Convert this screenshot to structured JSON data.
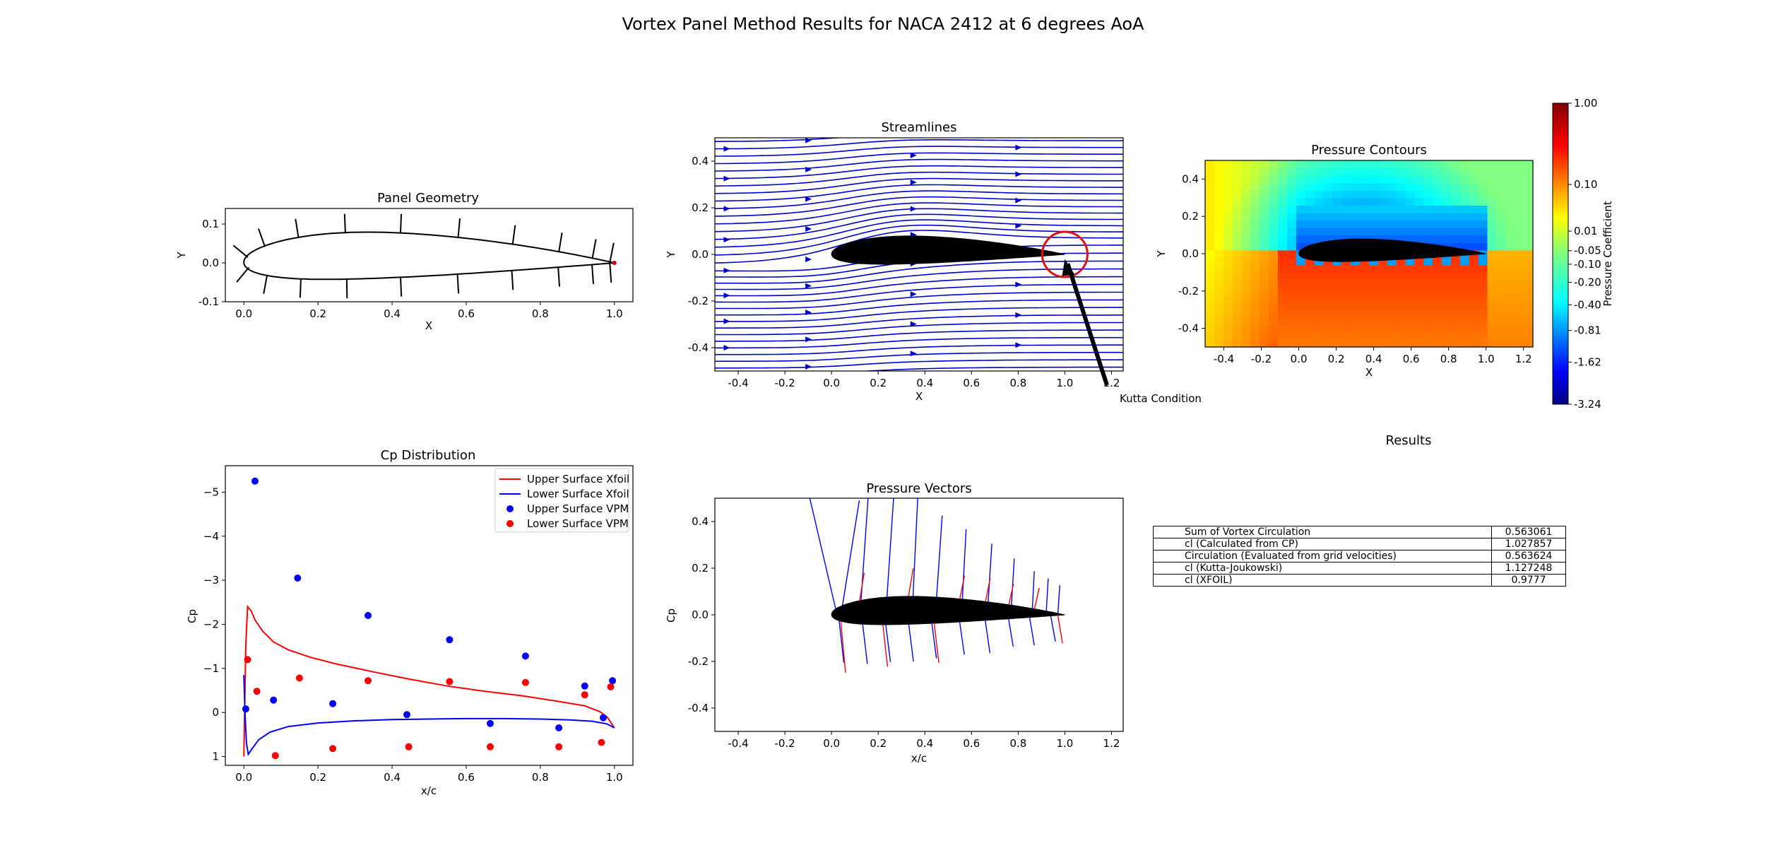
{
  "suptitle": "Vortex Panel Method Results for NACA 2412 at 6 degrees AoA",
  "colors": {
    "upper": "#ff0000",
    "lower": "#0000ff",
    "stream": "#0000cc",
    "body": "#000000"
  },
  "chart_data": [
    {
      "id": "panel",
      "type": "line",
      "title": "Panel Geometry",
      "xlabel": "X",
      "ylabel": "Y",
      "xlim": [
        -0.05,
        1.05
      ],
      "ylim": [
        -0.1,
        0.14
      ],
      "xticks": [
        "0.0",
        "0.2",
        "0.4",
        "0.6",
        "0.8",
        "1.0"
      ],
      "yticks": [
        "-0.1",
        "0.0",
        "0.1"
      ],
      "airfoil": "NACA 2412",
      "panels": 20
    },
    {
      "id": "stream",
      "type": "streamplot",
      "title": "Streamlines",
      "xlabel": "X",
      "ylabel": "Y",
      "xlim": [
        -0.5,
        1.25
      ],
      "ylim": [
        -0.5,
        0.5
      ],
      "xticks": [
        "-0.4",
        "-0.2",
        "0.0",
        "0.2",
        "0.4",
        "0.6",
        "0.8",
        "1.0",
        "1.2"
      ],
      "yticks": [
        "-0.4",
        "-0.2",
        "0.0",
        "0.2",
        "0.4"
      ],
      "annotation": {
        "text": "Kutta Condition",
        "xy": [
          1.0,
          0.0
        ]
      }
    },
    {
      "id": "contour",
      "type": "heatmap",
      "title": "Pressure Contours",
      "xlabel": "X",
      "ylabel": "Y",
      "xlim": [
        -0.5,
        1.25
      ],
      "ylim": [
        -0.5,
        0.5
      ],
      "xticks": [
        "-0.4",
        "-0.2",
        "0.0",
        "0.2",
        "0.4",
        "0.6",
        "0.8",
        "1.0",
        "1.2"
      ],
      "yticks": [
        "-0.4",
        "-0.2",
        "0.0",
        "0.2",
        "0.4"
      ],
      "colorbar": {
        "label": "Pressure Coefficient",
        "ticks": [
          "1.00",
          "0.10",
          "0.01",
          "-0.05",
          "-0.10",
          "-0.20",
          "-0.40",
          "-0.81",
          "-1.62",
          "-3.24"
        ],
        "min": -3.24,
        "max": 1.0
      }
    },
    {
      "id": "cp",
      "type": "line",
      "title": "Cp Distribution",
      "xlabel": "x/c",
      "ylabel": "Cp",
      "xlim": [
        -0.05,
        1.05
      ],
      "ylim": [
        1.2,
        -5.6
      ],
      "xticks": [
        "0.0",
        "0.2",
        "0.4",
        "0.6",
        "0.8",
        "1.0"
      ],
      "yticks": [
        "−5",
        "−4",
        "−3",
        "−2",
        "−1",
        "0",
        "1"
      ],
      "legend_position": "upper right",
      "series": [
        {
          "name": "Upper Surface Xfoil",
          "kind": "line",
          "color": "#ff0000",
          "x": [
            0.0,
            0.002,
            0.005,
            0.01,
            0.02,
            0.03,
            0.05,
            0.08,
            0.12,
            0.18,
            0.25,
            0.35,
            0.45,
            0.55,
            0.65,
            0.75,
            0.85,
            0.92,
            0.96,
            0.98,
            1.0
          ],
          "y": [
            1.0,
            0.0,
            -1.5,
            -2.4,
            -2.3,
            -2.1,
            -1.85,
            -1.6,
            -1.42,
            -1.25,
            -1.1,
            -0.92,
            -0.75,
            -0.6,
            -0.48,
            -0.38,
            -0.25,
            -0.15,
            -0.02,
            0.1,
            0.35
          ]
        },
        {
          "name": "Lower Surface Xfoil",
          "kind": "line",
          "color": "#0000ff",
          "x": [
            0.0,
            0.003,
            0.007,
            0.012,
            0.02,
            0.04,
            0.07,
            0.12,
            0.2,
            0.3,
            0.4,
            0.5,
            0.6,
            0.7,
            0.8,
            0.88,
            0.94,
            0.98,
            1.0
          ],
          "y": [
            -0.85,
            0.0,
            0.7,
            0.95,
            0.85,
            0.62,
            0.45,
            0.32,
            0.24,
            0.19,
            0.16,
            0.15,
            0.14,
            0.14,
            0.15,
            0.17,
            0.2,
            0.26,
            0.35
          ]
        },
        {
          "name": "Upper Surface VPM",
          "kind": "scatter",
          "color": "#0000ff",
          "x": [
            0.005,
            0.03,
            0.08,
            0.145,
            0.24,
            0.335,
            0.44,
            0.555,
            0.665,
            0.76,
            0.85,
            0.92,
            0.97,
            0.995
          ],
          "y": [
            -0.08,
            -5.25,
            -0.28,
            -3.05,
            -0.2,
            -2.2,
            0.05,
            -1.65,
            0.25,
            -1.28,
            0.35,
            -0.6,
            0.12,
            -0.72
          ]
        },
        {
          "name": "Lower Surface VPM",
          "kind": "scatter",
          "color": "#ff0000",
          "x": [
            0.01,
            0.035,
            0.085,
            0.15,
            0.24,
            0.335,
            0.445,
            0.555,
            0.665,
            0.76,
            0.85,
            0.92,
            0.965,
            0.99
          ],
          "y": [
            -1.2,
            -0.48,
            0.98,
            -0.78,
            0.82,
            -0.72,
            0.78,
            -0.7,
            0.78,
            -0.68,
            0.78,
            -0.4,
            0.68,
            -0.58
          ]
        }
      ]
    },
    {
      "id": "vectors",
      "type": "quiver",
      "title": "Pressure Vectors",
      "xlabel": "x/c",
      "ylabel": "Cp",
      "xlim": [
        -0.5,
        1.25
      ],
      "ylim": [
        -0.5,
        0.5
      ],
      "xticks": [
        "-0.4",
        "-0.2",
        "0.0",
        "0.2",
        "0.4",
        "0.6",
        "0.8",
        "1.0",
        "1.2"
      ],
      "yticks": [
        "-0.4",
        "-0.2",
        "0.0",
        "0.2",
        "0.4"
      ]
    },
    {
      "id": "results",
      "type": "table",
      "title": "Results",
      "rows": [
        {
          "name": "Sum of Vortex Circulation",
          "value": "0.563061"
        },
        {
          "name": "cl (Calculated from CP)",
          "value": "1.027857"
        },
        {
          "name": "Circulation (Evaluated from grid velocities)",
          "value": "0.563624"
        },
        {
          "name": "cl (Kutta-Joukowski)",
          "value": "1.127248"
        },
        {
          "name": "cl (XFOIL)",
          "value": "0.9777"
        }
      ]
    }
  ]
}
